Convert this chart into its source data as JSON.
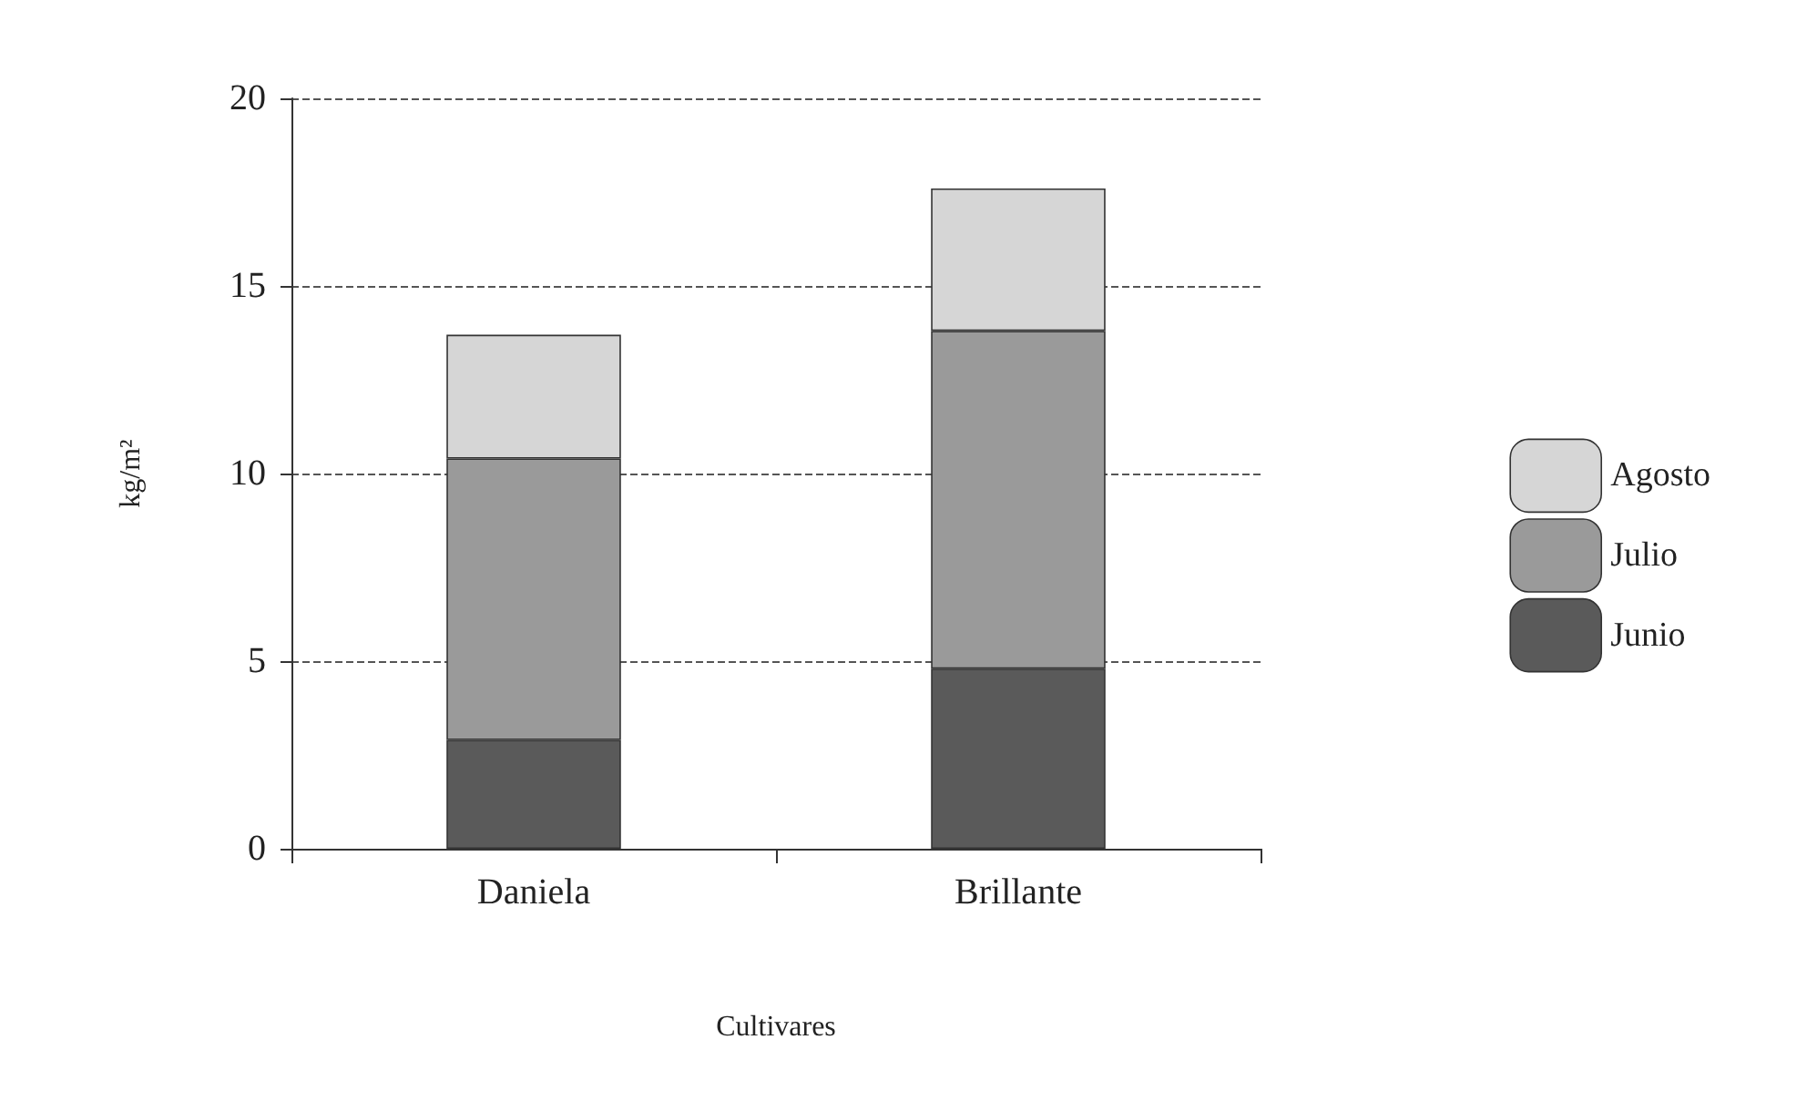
{
  "chart_data": {
    "type": "bar",
    "stacked": true,
    "xlabel": "Cultivares",
    "ylabel": "kg/m²",
    "categories": [
      "Daniela",
      "Brillante"
    ],
    "series": [
      {
        "name": "Junio",
        "color": "#5a5a5a",
        "values": [
          2.9,
          4.8
        ]
      },
      {
        "name": "Julio",
        "color": "#9a9a9a",
        "values": [
          7.5,
          9.0
        ]
      },
      {
        "name": "Agosto",
        "color": "#d6d6d6",
        "values": [
          3.3,
          3.8
        ]
      }
    ],
    "ylim": [
      0,
      20
    ],
    "yticks": [
      0,
      5,
      10,
      15,
      20
    ],
    "grid": "y",
    "legend": "right"
  }
}
